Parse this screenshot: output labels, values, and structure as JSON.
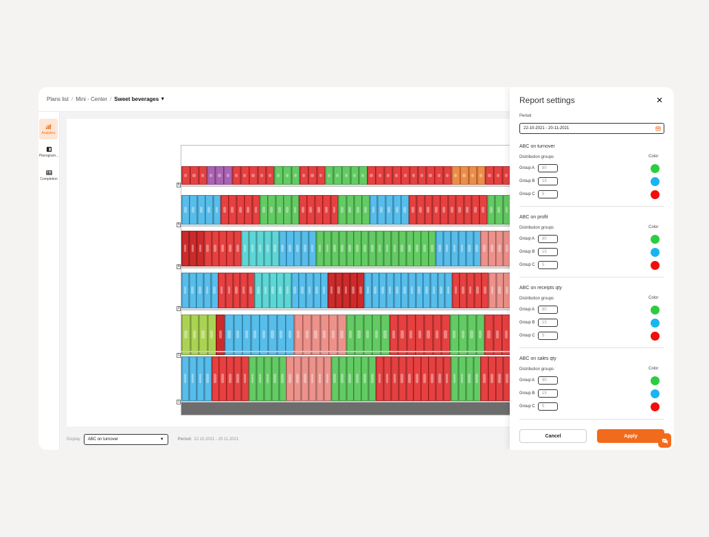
{
  "breadcrumb": {
    "items": [
      "Plans list",
      "Mini - Center"
    ],
    "current": "Sweet beverages"
  },
  "sidebar": {
    "items": [
      {
        "label": "Analytics",
        "icon": "chart-icon",
        "active": true
      },
      {
        "label": "Planogram...",
        "icon": "planogram-icon",
        "active": false
      },
      {
        "label": "Completion",
        "icon": "table-icon",
        "active": false
      }
    ]
  },
  "bottombar": {
    "display_label": "Display",
    "display_value": "ABC on turnover",
    "period_label": "Period:",
    "period_value": "22.10.2021 - 20.11.2021"
  },
  "planogram": {
    "shelf_numbers": [
      "6",
      "5",
      "4",
      "3",
      "2",
      "1"
    ]
  },
  "panel": {
    "title": "Report settings",
    "period_label": "Period",
    "period_value": "22-10-2021 - 20-11-2021",
    "distribution_label": "Distribution groups",
    "color_label": "Color",
    "colors": {
      "A": "#2ecc40",
      "B": "#19b5f0",
      "C": "#f20d0d"
    },
    "sections": [
      {
        "title": "ABC on turnover",
        "groups": [
          {
            "label": "Group A",
            "value": "80"
          },
          {
            "label": "Group B",
            "value": "15"
          },
          {
            "label": "Group C",
            "value": "5"
          }
        ]
      },
      {
        "title": "ABC on profit",
        "groups": [
          {
            "label": "Group A",
            "value": "80"
          },
          {
            "label": "Group B",
            "value": "15"
          },
          {
            "label": "Group C",
            "value": "5"
          }
        ]
      },
      {
        "title": "ABC on receipts qty",
        "groups": [
          {
            "label": "Group A",
            "value": "80"
          },
          {
            "label": "Group B",
            "value": "15"
          },
          {
            "label": "Group C",
            "value": "5"
          }
        ]
      },
      {
        "title": "ABC on sales qty",
        "groups": [
          {
            "label": "Group A",
            "value": "80"
          },
          {
            "label": "Group B",
            "value": "15"
          },
          {
            "label": "Group C",
            "value": "5"
          }
        ]
      }
    ],
    "cancel_label": "Cancel",
    "apply_label": "Apply"
  }
}
